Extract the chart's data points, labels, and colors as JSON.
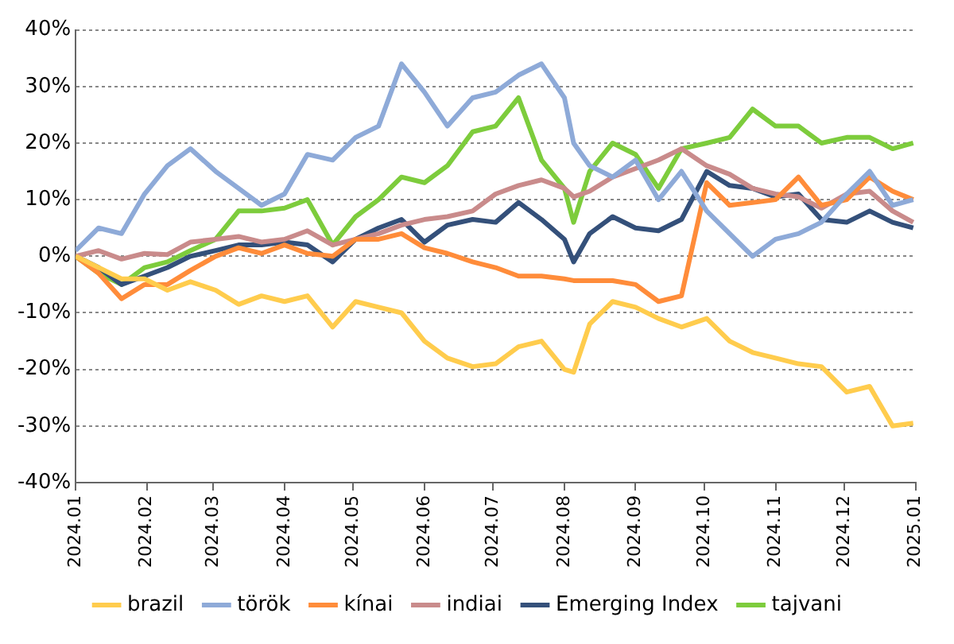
{
  "chart_data": {
    "type": "line",
    "x": [
      "2024-01-01",
      "2024-01-11",
      "2024-01-21",
      "2024-01-31",
      "2024-02-10",
      "2024-02-20",
      "2024-03-02",
      "2024-03-12",
      "2024-03-22",
      "2024-04-01",
      "2024-04-11",
      "2024-04-22",
      "2024-05-02",
      "2024-05-12",
      "2024-05-22",
      "2024-06-01",
      "2024-06-11",
      "2024-06-22",
      "2024-07-02",
      "2024-07-12",
      "2024-07-22",
      "2024-08-01",
      "2024-08-05",
      "2024-08-12",
      "2024-08-22",
      "2024-09-01",
      "2024-09-11",
      "2024-09-21",
      "2024-10-02",
      "2024-10-12",
      "2024-10-22",
      "2024-11-01",
      "2024-11-11",
      "2024-11-21",
      "2024-12-02",
      "2024-12-12",
      "2024-12-22",
      "2024-12-31"
    ],
    "series": [
      {
        "name": "brazil",
        "color": "#ffcc4d",
        "values": [
          0,
          -2,
          -4,
          -4,
          -6,
          -4.5,
          -6,
          -8.5,
          -7,
          -8,
          -7,
          -12.5,
          -8,
          -9,
          -10,
          -15,
          -18,
          -19.5,
          -19,
          -16,
          -15,
          -20,
          -20.5,
          -12,
          -8,
          -9,
          -11,
          -12.5,
          -11,
          -15,
          -17,
          -18,
          -19,
          -19.5,
          -24,
          -23,
          -30,
          -29.5
        ]
      },
      {
        "name": "török",
        "color": "#8eaad8",
        "values": [
          1,
          5,
          4,
          11,
          16,
          19,
          15,
          12,
          9,
          11,
          18,
          17,
          21,
          23,
          34,
          29,
          23,
          28,
          29,
          32,
          34,
          28,
          20,
          16,
          14,
          17,
          10,
          15,
          8,
          4,
          0,
          3,
          4,
          6,
          11,
          15,
          9,
          10
        ]
      },
      {
        "name": "kínai",
        "color": "#ff8c3a",
        "values": [
          0,
          -3,
          -7.5,
          -5,
          -5,
          -2.5,
          0,
          1.5,
          0.5,
          2,
          0.5,
          0,
          3,
          3,
          4,
          1.5,
          0.5,
          -1,
          -2,
          -3.5,
          -3.5,
          -4,
          -4.3,
          -4.3,
          -4.3,
          -5,
          -8,
          -7,
          13,
          9,
          9.5,
          10,
          14,
          9,
          10,
          14,
          11.5,
          10
        ]
      },
      {
        "name": "indiai",
        "color": "#c98b8b",
        "values": [
          0,
          1,
          -0.5,
          0.5,
          0.3,
          2.5,
          3,
          3.5,
          2.5,
          3,
          4.5,
          2,
          3,
          4,
          5.5,
          6.5,
          7,
          8,
          11,
          12.5,
          13.5,
          12,
          10.5,
          11.5,
          14,
          15.5,
          17,
          19,
          16,
          14.5,
          12,
          11,
          10.5,
          8.5,
          11,
          11.5,
          8,
          6
        ]
      },
      {
        "name": "Emerging Index",
        "color": "#34507a",
        "values": [
          0,
          -2,
          -5,
          -3.5,
          -2,
          0,
          1,
          2,
          2,
          2.5,
          2,
          -1,
          3,
          5,
          6.5,
          2.5,
          5.5,
          6.5,
          6,
          9.5,
          6.5,
          3,
          -1,
          4,
          7,
          5,
          4.5,
          6.5,
          15,
          12.5,
          12,
          10.5,
          11,
          6.5,
          6,
          8,
          6,
          5
        ]
      },
      {
        "name": "tajvani",
        "color": "#7dcc3c",
        "values": [
          0,
          -3,
          -5,
          -2,
          -1,
          1,
          3,
          8,
          8,
          8.5,
          10,
          2,
          7,
          10,
          14,
          13,
          16,
          22,
          23,
          28,
          17,
          12,
          6,
          15,
          20,
          18,
          12,
          19,
          20,
          21,
          26,
          23,
          23,
          20,
          21,
          21,
          19,
          20
        ]
      }
    ],
    "xlim": [
      "2024-01-01",
      "2025-01-01"
    ],
    "xticks": [
      {
        "value": "2024-01-01",
        "label": "2024.01"
      },
      {
        "value": "2024-02-01",
        "label": "2024.02"
      },
      {
        "value": "2024-03-01",
        "label": "2024.03"
      },
      {
        "value": "2024-04-01",
        "label": "2024.04"
      },
      {
        "value": "2024-05-01",
        "label": "2024.05"
      },
      {
        "value": "2024-06-01",
        "label": "2024.06"
      },
      {
        "value": "2024-07-01",
        "label": "2024.07"
      },
      {
        "value": "2024-08-01",
        "label": "2024.08"
      },
      {
        "value": "2024-09-01",
        "label": "2024.09"
      },
      {
        "value": "2024-10-01",
        "label": "2024.10"
      },
      {
        "value": "2024-11-01",
        "label": "2024.11"
      },
      {
        "value": "2024-12-01",
        "label": "2024.12"
      },
      {
        "value": "2025-01-01",
        "label": "2025.01"
      }
    ],
    "ylim": [
      -40,
      40
    ],
    "yticks": [
      {
        "value": -40,
        "label": "-40%"
      },
      {
        "value": -30,
        "label": "-30%"
      },
      {
        "value": -20,
        "label": "-20%"
      },
      {
        "value": -10,
        "label": "-10%"
      },
      {
        "value": 0,
        "label": "0%"
      },
      {
        "value": 10,
        "label": "10%"
      },
      {
        "value": 20,
        "label": "20%"
      },
      {
        "value": 30,
        "label": "30%"
      },
      {
        "value": 40,
        "label": "40%"
      }
    ],
    "grid": "y",
    "legend": "bottom",
    "marker": "none",
    "line_style": "solid"
  }
}
